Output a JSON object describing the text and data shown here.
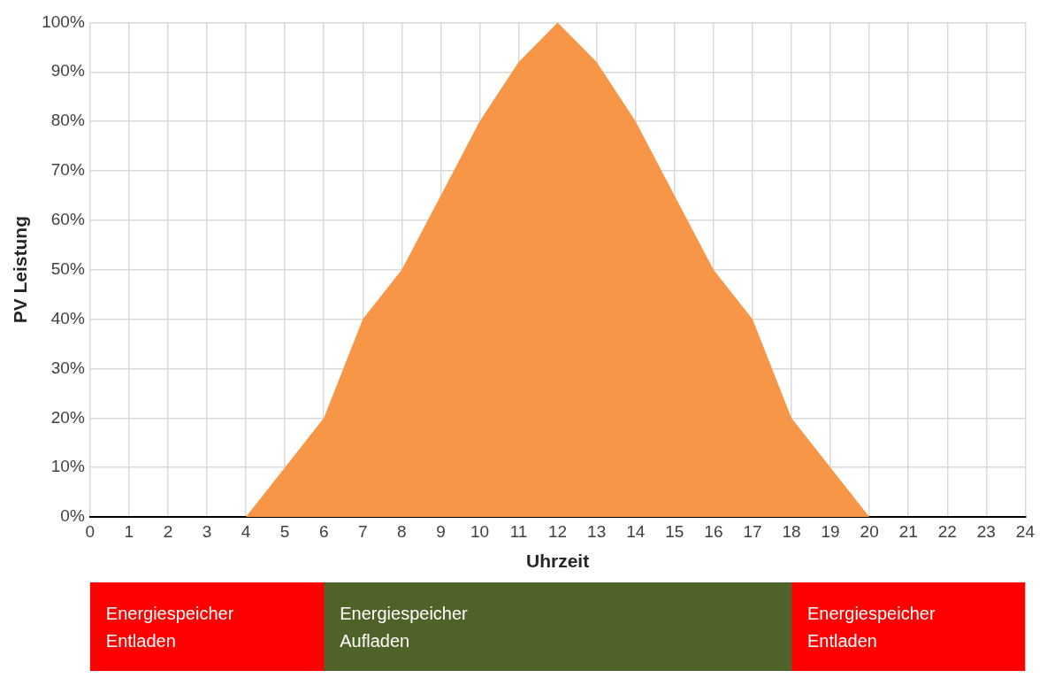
{
  "chart_data": [
    {
      "type": "area",
      "xlabel": "Uhrzeit",
      "ylabel": "PV Leistung",
      "x": [
        0,
        1,
        2,
        3,
        4,
        5,
        6,
        7,
        8,
        9,
        10,
        11,
        12,
        13,
        14,
        15,
        16,
        17,
        18,
        19,
        20,
        21,
        22,
        23,
        24
      ],
      "series": [
        {
          "color": "#f79646",
          "values": [
            0,
            0,
            0,
            0,
            0,
            10,
            20,
            40,
            50,
            65,
            80,
            92,
            100,
            92,
            80,
            65,
            50,
            40,
            20,
            10,
            0,
            0,
            0,
            0,
            0
          ]
        }
      ],
      "xlim": [
        0,
        24
      ],
      "xticks": [
        0,
        1,
        2,
        3,
        4,
        5,
        6,
        7,
        8,
        9,
        10,
        11,
        12,
        13,
        14,
        15,
        16,
        17,
        18,
        19,
        20,
        21,
        22,
        23,
        24
      ],
      "ylim": [
        0,
        100
      ],
      "yticks": [
        {
          "value": 0,
          "label": "0%"
        },
        {
          "value": 10,
          "label": "10%"
        },
        {
          "value": 20,
          "label": "20%"
        },
        {
          "value": 30,
          "label": "30%"
        },
        {
          "value": 40,
          "label": "40%"
        },
        {
          "value": 50,
          "label": "50%"
        },
        {
          "value": 60,
          "label": "60%"
        },
        {
          "value": 70,
          "label": "70%"
        },
        {
          "value": 80,
          "label": "80%"
        },
        {
          "value": 90,
          "label": "90%"
        },
        {
          "value": 100,
          "label": "100%"
        }
      ],
      "grid": true
    },
    {
      "type": "bar",
      "orientation": "horizontal",
      "stacked": true,
      "categories": [
        null
      ],
      "series": [
        {
          "name": "Energiespeicher Entladen",
          "color": "#ff0000",
          "values": [
            6
          ]
        },
        {
          "name": "Energiespeicher Aufladen",
          "color": "#4f6228",
          "values": [
            12
          ]
        },
        {
          "name": "Energiespeicher Entladen",
          "color": "#ff0000",
          "values": [
            6
          ]
        }
      ],
      "xlim": [
        0,
        24
      ],
      "tick_labels": false
    }
  ]
}
